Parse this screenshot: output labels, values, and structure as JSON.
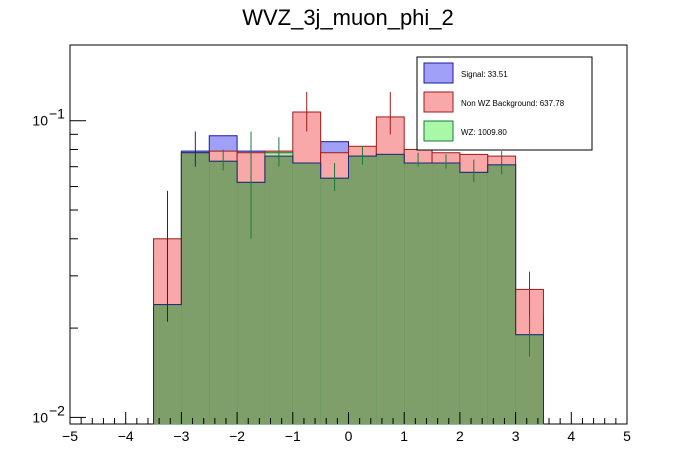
{
  "chart_data": {
    "type": "bar",
    "title": "WVZ_3j_muon_phi_2",
    "xlabel": "",
    "ylabel": "",
    "xlim": [
      -5,
      5
    ],
    "ylim": [
      0.0095,
      0.18
    ],
    "yscale": "log",
    "x_ticks": [
      -5,
      -4,
      -3,
      -2,
      -1,
      0,
      1,
      2,
      3,
      4,
      5
    ],
    "x_tick_labels": [
      "−5",
      "−4",
      "−3",
      "−2",
      "−1",
      "0",
      "1",
      "2",
      "3",
      "4",
      "5"
    ],
    "y_tick_labels": [
      {
        "value": 0.01,
        "base": "10",
        "exp": "−2"
      },
      {
        "value": 0.1,
        "base": "10",
        "exp": "−1"
      }
    ],
    "bin_edges": [
      -3.5,
      -3.0,
      -2.5,
      -2.0,
      -1.5,
      -1.0,
      -0.5,
      0.0,
      0.5,
      1.0,
      1.5,
      2.0,
      2.5,
      3.0,
      3.5
    ],
    "legend_position": "top-right",
    "series": [
      {
        "name": "Signal",
        "legend_label": "Signal: 33.51",
        "fill": "#a0a0f8",
        "stroke": "#1a1aa0",
        "values": [
          0.034,
          0.079,
          0.089,
          0.079,
          0.076,
          0.076,
          0.085,
          0.08,
          0.078,
          0.079,
          0.074,
          0.071,
          0.072,
          0.022
        ]
      },
      {
        "name": "Non WZ Background",
        "legend_label": "Non WZ Background: 637.78",
        "fill": "#f8a8a8",
        "stroke": "#a01a1a",
        "values": [
          0.04,
          0.078,
          0.079,
          0.078,
          0.079,
          0.107,
          0.078,
          0.082,
          0.103,
          0.08,
          0.078,
          0.077,
          0.076,
          0.027
        ]
      },
      {
        "name": "WZ",
        "legend_label": "WZ: 1009.80",
        "fill": "#a8f8a8",
        "stroke": "#1a7a3a",
        "values": [
          0.024,
          0.078,
          0.073,
          0.062,
          0.078,
          0.072,
          0.064,
          0.076,
          0.077,
          0.072,
          0.072,
          0.067,
          0.071,
          0.019
        ]
      }
    ],
    "error_bars": [
      {
        "series": "Signal",
        "x": -3.25,
        "low": 0.021,
        "high": 0.058
      },
      {
        "series": "Signal",
        "x": -2.75,
        "low": 0.07,
        "high": 0.092
      },
      {
        "series": "Non WZ Background",
        "x": -0.75,
        "low": 0.092,
        "high": 0.125
      },
      {
        "series": "Non WZ Background",
        "x": 0.75,
        "low": 0.09,
        "high": 0.125
      },
      {
        "series": "Non WZ Background",
        "x": 3.25,
        "low": 0.018,
        "high": 0.031
      },
      {
        "series": "WZ",
        "x": -1.75,
        "low": 0.04,
        "high": 0.092
      },
      {
        "series": "WZ",
        "x": -0.25,
        "low": 0.058,
        "high": 0.072
      },
      {
        "series": "WZ",
        "x": -2.25,
        "low": 0.068,
        "high": 0.08
      },
      {
        "series": "WZ",
        "x": -1.25,
        "low": 0.07,
        "high": 0.088
      },
      {
        "series": "WZ",
        "x": 0.25,
        "low": 0.071,
        "high": 0.082
      },
      {
        "series": "WZ",
        "x": 1.25,
        "low": 0.07,
        "high": 0.078
      },
      {
        "series": "WZ",
        "x": 1.75,
        "low": 0.069,
        "high": 0.077
      },
      {
        "series": "WZ",
        "x": 2.25,
        "low": 0.062,
        "high": 0.074
      },
      {
        "series": "WZ",
        "x": 2.75,
        "low": 0.066,
        "high": 0.079
      },
      {
        "series": "WZ",
        "x": 3.25,
        "low": 0.016,
        "high": 0.022
      }
    ],
    "overlap_color": "#7f9f6a",
    "overlap_stroke": "#1a2a7a"
  }
}
